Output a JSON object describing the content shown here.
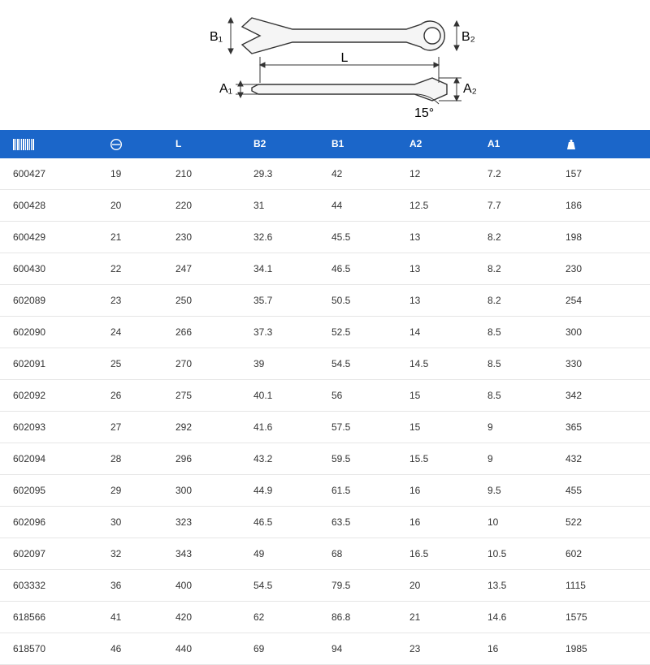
{
  "colors": {
    "header_bg": "#1b66c9",
    "header_fg": "#ffffff",
    "row_border": "#e6e6e6",
    "cell_fg": "#333333",
    "diagram_stroke": "#333333",
    "diagram_fill": "#f5f5f5"
  },
  "diagram": {
    "labels": {
      "B1": "B₁",
      "B2": "B₂",
      "A1": "A₁",
      "A2": "A₂",
      "L": "L",
      "angle": "15°"
    },
    "label_fontsize": 16,
    "stroke_width": 1.4
  },
  "table": {
    "columns": [
      {
        "key": "code",
        "icon": "barcode",
        "width": "16%",
        "align": "left"
      },
      {
        "key": "size",
        "icon": "hex",
        "width": "10%",
        "align": "left"
      },
      {
        "key": "L",
        "label": "L",
        "width": "12%",
        "align": "left"
      },
      {
        "key": "B2",
        "label": "B2",
        "width": "12%",
        "align": "left"
      },
      {
        "key": "B1",
        "label": "B1",
        "width": "12%",
        "align": "left"
      },
      {
        "key": "A2",
        "label": "A2",
        "width": "12%",
        "align": "left"
      },
      {
        "key": "A1",
        "label": "A1",
        "width": "12%",
        "align": "left"
      },
      {
        "key": "weight",
        "icon": "weight",
        "width": "14%",
        "align": "left"
      }
    ],
    "rows": [
      {
        "code": "600427",
        "size": "19",
        "L": "210",
        "B2": "29.3",
        "B1": "42",
        "A2": "12",
        "A1": "7.2",
        "weight": "157"
      },
      {
        "code": "600428",
        "size": "20",
        "L": "220",
        "B2": "31",
        "B1": "44",
        "A2": "12.5",
        "A1": "7.7",
        "weight": "186"
      },
      {
        "code": "600429",
        "size": "21",
        "L": "230",
        "B2": "32.6",
        "B1": "45.5",
        "A2": "13",
        "A1": "8.2",
        "weight": "198"
      },
      {
        "code": "600430",
        "size": "22",
        "L": "247",
        "B2": "34.1",
        "B1": "46.5",
        "A2": "13",
        "A1": "8.2",
        "weight": "230"
      },
      {
        "code": "602089",
        "size": "23",
        "L": "250",
        "B2": "35.7",
        "B1": "50.5",
        "A2": "13",
        "A1": "8.2",
        "weight": "254"
      },
      {
        "code": "602090",
        "size": "24",
        "L": "266",
        "B2": "37.3",
        "B1": "52.5",
        "A2": "14",
        "A1": "8.5",
        "weight": "300"
      },
      {
        "code": "602091",
        "size": "25",
        "L": "270",
        "B2": "39",
        "B1": "54.5",
        "A2": "14.5",
        "A1": "8.5",
        "weight": "330"
      },
      {
        "code": "602092",
        "size": "26",
        "L": "275",
        "B2": "40.1",
        "B1": "56",
        "A2": "15",
        "A1": "8.5",
        "weight": "342"
      },
      {
        "code": "602093",
        "size": "27",
        "L": "292",
        "B2": "41.6",
        "B1": "57.5",
        "A2": "15",
        "A1": "9",
        "weight": "365"
      },
      {
        "code": "602094",
        "size": "28",
        "L": "296",
        "B2": "43.2",
        "B1": "59.5",
        "A2": "15.5",
        "A1": "9",
        "weight": "432"
      },
      {
        "code": "602095",
        "size": "29",
        "L": "300",
        "B2": "44.9",
        "B1": "61.5",
        "A2": "16",
        "A1": "9.5",
        "weight": "455"
      },
      {
        "code": "602096",
        "size": "30",
        "L": "323",
        "B2": "46.5",
        "B1": "63.5",
        "A2": "16",
        "A1": "10",
        "weight": "522"
      },
      {
        "code": "602097",
        "size": "32",
        "L": "343",
        "B2": "49",
        "B1": "68",
        "A2": "16.5",
        "A1": "10.5",
        "weight": "602"
      },
      {
        "code": "603332",
        "size": "36",
        "L": "400",
        "B2": "54.5",
        "B1": "79.5",
        "A2": "20",
        "A1": "13.5",
        "weight": "1115"
      },
      {
        "code": "618566",
        "size": "41",
        "L": "420",
        "B2": "62",
        "B1": "86.8",
        "A2": "21",
        "A1": "14.6",
        "weight": "1575"
      },
      {
        "code": "618570",
        "size": "46",
        "L": "440",
        "B2": "69",
        "B1": "94",
        "A2": "23",
        "A1": "16",
        "weight": "1985"
      }
    ]
  }
}
